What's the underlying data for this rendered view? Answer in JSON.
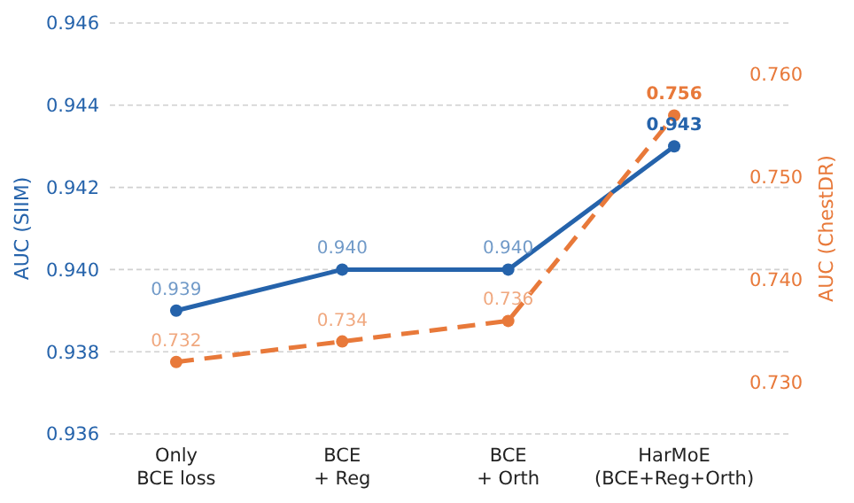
{
  "chart_data": {
    "type": "line",
    "categories": [
      "Only\nBCE loss",
      "BCE\n+ Reg",
      "BCE\n+ Orth",
      "HarMoE\n(BCE+Reg+Orth)"
    ],
    "ylabel": "AUC (SIIM)",
    "y2label": "AUC (ChestDR)",
    "ylim": [
      0.936,
      0.946
    ],
    "yticks": [
      {
        "value": 0.936,
        "label": "0.936"
      },
      {
        "value": 0.938,
        "label": "0.938"
      },
      {
        "value": 0.94,
        "label": "0.940"
      },
      {
        "value": 0.942,
        "label": "0.942"
      },
      {
        "value": 0.944,
        "label": "0.944"
      },
      {
        "value": 0.946,
        "label": "0.946"
      }
    ],
    "y2lim": [
      0.725,
      0.765
    ],
    "y2ticks": [
      {
        "value": 0.73,
        "label": "0.730"
      },
      {
        "value": 0.74,
        "label": "0.740"
      },
      {
        "value": 0.75,
        "label": "0.750"
      },
      {
        "value": 0.76,
        "label": "0.760"
      }
    ],
    "series": [
      {
        "color": "#2563ab",
        "values": [
          0.939,
          0.94,
          0.94,
          0.943
        ],
        "value_labels": [
          "0.939",
          "0.940",
          "0.940",
          "0.943"
        ],
        "line_style": "solid"
      },
      {
        "color": "#e8793a",
        "values": [
          0.732,
          0.734,
          0.736,
          0.756
        ],
        "value_labels": [
          "0.732",
          "0.734",
          "0.736",
          "0.756"
        ],
        "axis": "y2",
        "line_style": "dashed"
      }
    ],
    "marker": "circle",
    "grid": "y"
  }
}
